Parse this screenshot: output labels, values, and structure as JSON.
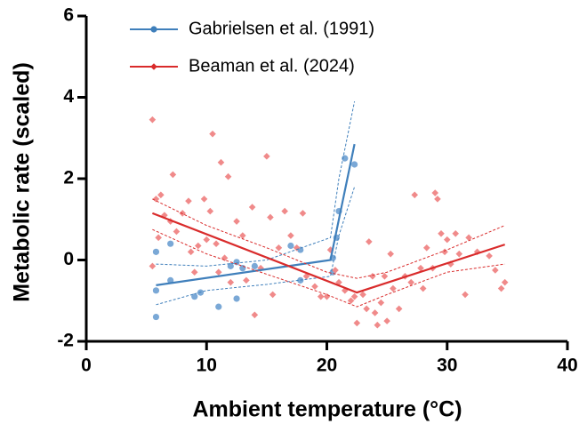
{
  "chart_data": {
    "type": "scatter",
    "x_label": "Ambient temperature (°C)",
    "y_label": "Metabolic rate (scaled)",
    "xlim": [
      0,
      40
    ],
    "xticks": [
      0,
      10,
      20,
      30,
      40
    ],
    "ylim": [
      -2,
      6
    ],
    "yticks": [
      -2,
      0,
      2,
      4,
      6
    ],
    "legend": "top-left",
    "series": [
      {
        "name": "Gabrielsen et al. (1991)",
        "color": "#3f7fbb",
        "point_color": "#7aa8d6",
        "marker": "circle",
        "x": [
          5.8,
          5.8,
          5.8,
          7,
          7,
          9,
          9.5,
          11,
          12,
          12.5,
          13,
          12.5,
          14,
          17,
          17.8,
          17.8,
          20.5,
          20.5,
          20.8,
          21,
          21.5,
          22.3
        ],
        "values": [
          0.2,
          -0.75,
          -1.4,
          0.4,
          -0.5,
          -0.9,
          -0.8,
          -1.15,
          -0.15,
          -0.05,
          -0.2,
          -0.95,
          -0.15,
          0.35,
          0.25,
          -0.5,
          0.05,
          -0.3,
          0.55,
          1.2,
          2.5,
          2.35
        ],
        "fit_x": [
          5.8,
          20.3,
          22.3
        ],
        "fit_y": [
          -0.62,
          0,
          2.85
        ],
        "ci_x": [
          5.8,
          10,
          15,
          20.3,
          21,
          22.3
        ],
        "ci_lower": [
          -1.1,
          -0.75,
          -0.6,
          -0.4,
          0.6,
          1.8
        ],
        "ci_upper": [
          -0.1,
          -0.15,
          0,
          0.55,
          2,
          3.9
        ]
      },
      {
        "name": "Beaman et al. (2024)",
        "color": "#d92b2b",
        "point_color": "#f08a8a",
        "marker": "diamond",
        "x": [
          5.5,
          5.5,
          5.8,
          6,
          6.2,
          6.5,
          7,
          7.2,
          7.5,
          8,
          8.5,
          8.7,
          9,
          9.3,
          9.8,
          10,
          10.3,
          10.5,
          10.8,
          11,
          11.2,
          11.5,
          11.8,
          12,
          12.5,
          13,
          13.3,
          13.8,
          14,
          14.5,
          15,
          15.3,
          15.5,
          16,
          16.5,
          17,
          17.5,
          18,
          18.3,
          19,
          19.5,
          20,
          20.3,
          20.7,
          21,
          21.5,
          22,
          22.3,
          22.5,
          23,
          23.3,
          23.5,
          23.8,
          24,
          24.2,
          24.5,
          24.8,
          25,
          25.3,
          25.5,
          26,
          26.5,
          27,
          27.3,
          27.8,
          28,
          28.3,
          28.8,
          29,
          29.2,
          29.5,
          29.8,
          30,
          30.3,
          30.7,
          31,
          31.5,
          31.8,
          32.5,
          33.5,
          34,
          34.5,
          34.8
        ],
        "values": [
          3.45,
          -0.15,
          1.5,
          0.55,
          1.6,
          1.1,
          0.95,
          2.1,
          0.7,
          1.15,
          1.45,
          0.2,
          -0.3,
          0.35,
          1.5,
          0.5,
          1.2,
          3.1,
          0.4,
          -0.3,
          2.4,
          0.05,
          2.05,
          -0.55,
          0.95,
          0.6,
          -0.5,
          1.3,
          -1.35,
          -0.2,
          2.55,
          1.05,
          -0.85,
          0.3,
          1.2,
          0.6,
          0.3,
          1.15,
          -0.4,
          -0.65,
          -0.9,
          -0.9,
          0.25,
          -0.25,
          -0.55,
          -0.75,
          -1,
          -0.9,
          -1.55,
          -0.85,
          -1.2,
          0.45,
          -0.4,
          -1.3,
          -1.6,
          -1.05,
          -0.4,
          -1.5,
          0.15,
          -0.7,
          -1.2,
          -0.4,
          -0.55,
          1.6,
          -0.2,
          -0.7,
          0.3,
          -0.2,
          1.65,
          1.5,
          0.65,
          0.2,
          0.5,
          -0.1,
          0.65,
          0.15,
          -0.85,
          0.55,
          0.2,
          0.1,
          -0.25,
          -0.7,
          -0.55
        ],
        "fit_x": [
          5.5,
          22.5,
          34.8
        ],
        "fit_y": [
          1.15,
          -0.8,
          0.38
        ],
        "ci_x": [
          5.5,
          10,
          15,
          20,
          22.5,
          25,
          30,
          34.8
        ],
        "ci_lower": [
          0.75,
          0.15,
          -0.35,
          -0.85,
          -1.15,
          -0.85,
          -0.3,
          -0.1
        ],
        "ci_upper": [
          1.5,
          0.85,
          0.3,
          -0.3,
          -0.45,
          -0.3,
          0.25,
          0.85
        ]
      }
    ]
  }
}
